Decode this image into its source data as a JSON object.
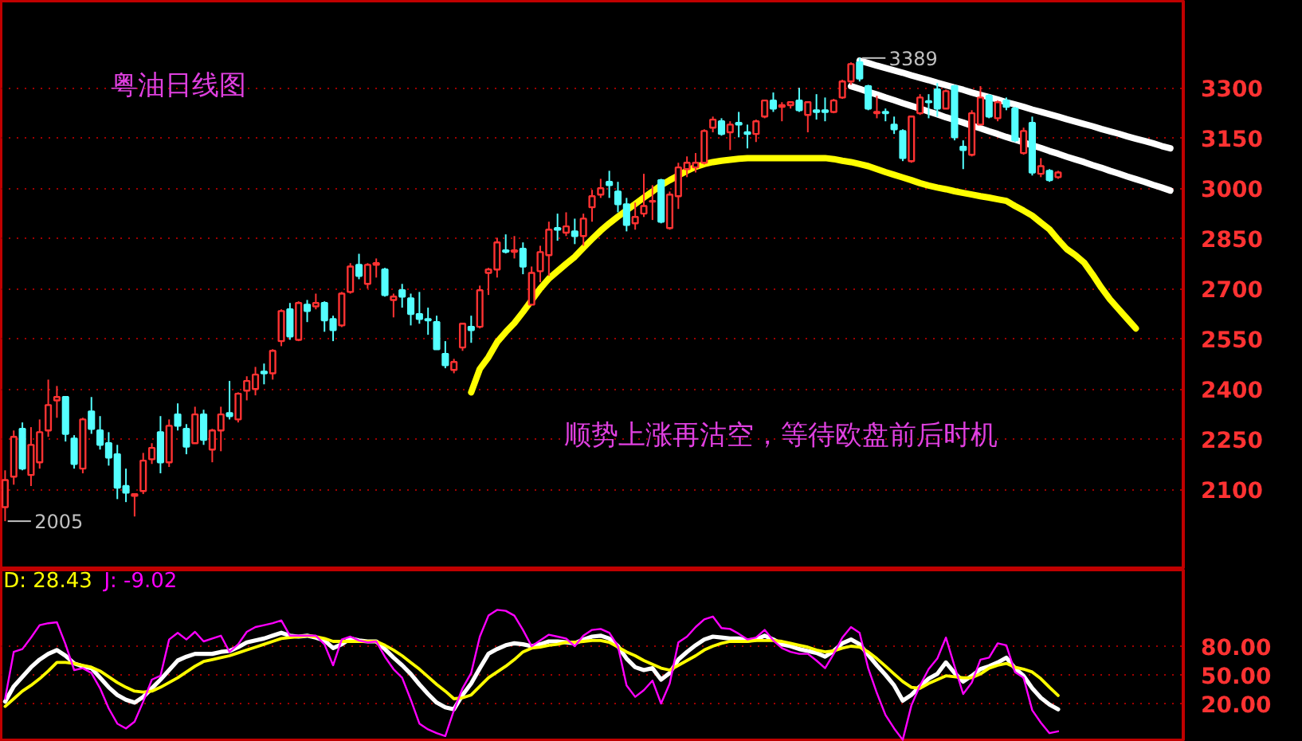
{
  "chart_data": [
    {
      "type": "candlestick",
      "title": "粤油日线图",
      "categories": [
        null,
        null,
        null,
        null,
        null,
        null,
        null,
        null,
        null,
        null,
        null,
        null,
        null,
        null,
        null,
        null,
        null,
        null,
        null,
        null,
        null,
        null,
        null,
        null,
        null,
        null,
        null,
        null,
        null,
        null,
        null,
        null,
        null,
        null,
        null,
        null,
        null,
        null,
        null,
        null,
        null,
        null,
        null,
        null,
        null,
        null,
        null,
        null,
        null,
        null,
        null,
        null,
        null,
        null,
        null,
        null,
        null,
        null,
        null,
        null,
        null,
        null,
        null,
        null,
        null,
        null,
        null,
        null,
        null,
        null,
        null,
        null,
        null,
        null,
        null,
        null,
        null,
        null,
        null,
        null,
        null,
        null,
        null,
        null,
        null,
        null,
        null,
        null,
        null,
        null,
        null,
        null,
        null,
        null,
        null,
        null,
        null,
        null,
        null,
        null,
        null,
        null,
        null,
        null,
        null,
        null,
        null,
        null,
        null,
        null,
        null,
        null,
        null,
        null,
        null,
        null,
        null,
        null,
        null,
        null,
        null,
        null,
        null,
        null,
        null,
        null,
        null,
        null,
        null,
        null,
        null,
        null,
        null,
        null,
        null,
        null,
        null
      ],
      "ohlc": [
        [
          2047,
          2157,
          2005,
          2128
        ],
        [
          2138,
          2276,
          2114,
          2257
        ],
        [
          2281,
          2300,
          2157,
          2162
        ],
        [
          2143,
          2286,
          2110,
          2233
        ],
        [
          2181,
          2309,
          2162,
          2271
        ],
        [
          2276,
          2428,
          2257,
          2352
        ],
        [
          2366,
          2409,
          2314,
          2376
        ],
        [
          2376,
          2376,
          2243,
          2266
        ],
        [
          2252,
          2262,
          2162,
          2176
        ],
        [
          2162,
          2314,
          2148,
          2309
        ],
        [
          2333,
          2376,
          2266,
          2281
        ],
        [
          2276,
          2319,
          2219,
          2233
        ],
        [
          2238,
          2271,
          2171,
          2195
        ],
        [
          2205,
          2233,
          2071,
          2105
        ],
        [
          2110,
          2162,
          2062,
          2090
        ],
        [
          2081,
          2086,
          2019,
          2086
        ],
        [
          2095,
          2209,
          2086,
          2186
        ],
        [
          2190,
          2238,
          2176,
          2224
        ],
        [
          2271,
          2319,
          2148,
          2181
        ],
        [
          2181,
          2309,
          2167,
          2290
        ],
        [
          2324,
          2357,
          2276,
          2290
        ],
        [
          2281,
          2295,
          2205,
          2228
        ],
        [
          2238,
          2347,
          2238,
          2324
        ],
        [
          2324,
          2338,
          2233,
          2248
        ],
        [
          2219,
          2281,
          2181,
          2276
        ],
        [
          2276,
          2347,
          2214,
          2324
        ],
        [
          2328,
          2424,
          2309,
          2319
        ],
        [
          2309,
          2390,
          2300,
          2386
        ],
        [
          2395,
          2438,
          2366,
          2424
        ],
        [
          2400,
          2466,
          2381,
          2443
        ],
        [
          2452,
          2476,
          2414,
          2447
        ],
        [
          2447,
          2519,
          2428,
          2514
        ],
        [
          2543,
          2638,
          2528,
          2633
        ],
        [
          2638,
          2657,
          2547,
          2557
        ],
        [
          2547,
          2662,
          2543,
          2657
        ],
        [
          2652,
          2666,
          2600,
          2633
        ],
        [
          2647,
          2685,
          2638,
          2657
        ],
        [
          2657,
          2662,
          2571,
          2605
        ],
        [
          2609,
          2619,
          2543,
          2576
        ],
        [
          2590,
          2690,
          2585,
          2685
        ],
        [
          2690,
          2776,
          2685,
          2766
        ],
        [
          2771,
          2804,
          2728,
          2738
        ],
        [
          2714,
          2776,
          2700,
          2771
        ],
        [
          2771,
          2790,
          2733,
          2776
        ],
        [
          2757,
          2762,
          2676,
          2681
        ],
        [
          2666,
          2685,
          2614,
          2676
        ],
        [
          2695,
          2714,
          2643,
          2676
        ],
        [
          2671,
          2685,
          2590,
          2624
        ],
        [
          2624,
          2690,
          2595,
          2609
        ],
        [
          2609,
          2643,
          2562,
          2605
        ],
        [
          2600,
          2619,
          2519,
          2519
        ],
        [
          2505,
          2543,
          2462,
          2471
        ],
        [
          2457,
          2490,
          2447,
          2481
        ],
        [
          2524,
          2595,
          2514,
          2595
        ],
        [
          2586,
          2619,
          2538,
          2576
        ],
        [
          2586,
          2709,
          2581,
          2695
        ],
        [
          2747,
          2762,
          2681,
          2757
        ],
        [
          2757,
          2852,
          2733,
          2838
        ],
        [
          2814,
          2862,
          2805,
          2810
        ],
        [
          2810,
          2857,
          2790,
          2814
        ],
        [
          2819,
          2838,
          2743,
          2766
        ],
        [
          2652,
          2766,
          2652,
          2747
        ],
        [
          2752,
          2828,
          2719,
          2809
        ],
        [
          2800,
          2900,
          2738,
          2876
        ],
        [
          2881,
          2924,
          2843,
          2876
        ],
        [
          2867,
          2928,
          2857,
          2886
        ],
        [
          2871,
          2909,
          2833,
          2857
        ],
        [
          2857,
          2924,
          2828,
          2909
        ],
        [
          2943,
          2995,
          2900,
          2976
        ],
        [
          2981,
          3028,
          2971,
          3000
        ],
        [
          3019,
          3052,
          2971,
          3009
        ],
        [
          2990,
          3019,
          2928,
          2952
        ],
        [
          2952,
          2971,
          2871,
          2890
        ],
        [
          2895,
          2957,
          2876,
          2914
        ],
        [
          2924,
          3043,
          2914,
          2947
        ],
        [
          2960,
          3009,
          2905,
          2962
        ],
        [
          3024,
          3028,
          2895,
          2900
        ],
        [
          2881,
          2990,
          2876,
          2981
        ],
        [
          2976,
          3076,
          2938,
          3062
        ],
        [
          3057,
          3095,
          3033,
          3076
        ],
        [
          3062,
          3105,
          3047,
          3076
        ],
        [
          3076,
          3176,
          3071,
          3171
        ],
        [
          3181,
          3214,
          3167,
          3205
        ],
        [
          3200,
          3209,
          3157,
          3162
        ],
        [
          3167,
          3200,
          3114,
          3190
        ],
        [
          3195,
          3228,
          3152,
          3190
        ],
        [
          3167,
          3190,
          3119,
          3162
        ],
        [
          3162,
          3205,
          3138,
          3200
        ],
        [
          3214,
          3262,
          3209,
          3262
        ],
        [
          3262,
          3286,
          3228,
          3238
        ],
        [
          3243,
          3257,
          3200,
          3248
        ],
        [
          3248,
          3257,
          3238,
          3257
        ],
        [
          3262,
          3300,
          3228,
          3233
        ],
        [
          3219,
          3257,
          3167,
          3257
        ],
        [
          3233,
          3281,
          3205,
          3228
        ],
        [
          3233,
          3271,
          3200,
          3228
        ],
        [
          3228,
          3267,
          3224,
          3262
        ],
        [
          3271,
          3324,
          3267,
          3319
        ],
        [
          3319,
          3376,
          3309,
          3371
        ],
        [
          3376,
          3389,
          3319,
          3328
        ],
        [
          3305,
          3309,
          3233,
          3238
        ],
        [
          3224,
          3276,
          3209,
          3228
        ],
        [
          3228,
          3238,
          3200,
          3224
        ],
        [
          3190,
          3214,
          3162,
          3176
        ],
        [
          3171,
          3176,
          3081,
          3090
        ],
        [
          3081,
          3214,
          3076,
          3214
        ],
        [
          3224,
          3281,
          3219,
          3271
        ],
        [
          3260,
          3281,
          3209,
          3257
        ],
        [
          3295,
          3314,
          3214,
          3238
        ],
        [
          3238,
          3295,
          3238,
          3290
        ],
        [
          3305,
          3309,
          3143,
          3152
        ],
        [
          3124,
          3143,
          3057,
          3114
        ],
        [
          3100,
          3233,
          3095,
          3224
        ],
        [
          3190,
          3305,
          3190,
          3271
        ],
        [
          3276,
          3281,
          3209,
          3214
        ],
        [
          3209,
          3262,
          3200,
          3257
        ],
        [
          3262,
          3271,
          3233,
          3243
        ],
        [
          3238,
          3243,
          3138,
          3143
        ],
        [
          3105,
          3181,
          3100,
          3171
        ],
        [
          3195,
          3214,
          3038,
          3047
        ],
        [
          3043,
          3090,
          3033,
          3066
        ],
        [
          3052,
          3057,
          3019,
          3024
        ],
        [
          3033,
          3052,
          3028,
          3047
        ],
        null,
        null,
        null,
        null,
        null,
        null,
        null,
        null,
        null,
        null,
        null,
        null,
        null,
        null
      ],
      "colors": [
        "#ff3232",
        "#ff3232",
        "#54ffff",
        "#ff3232",
        "#ff3232",
        "#ff3232",
        "#ff3232",
        "#54ffff",
        "#54ffff",
        "#ff3232",
        "#54ffff",
        "#54ffff",
        "#54ffff",
        "#54ffff",
        "#54ffff",
        "#ff3232",
        "#ff3232",
        "#ff3232",
        "#54ffff",
        "#ff3232",
        "#54ffff",
        "#54ffff",
        "#ff3232",
        "#54ffff",
        "#ff3232",
        "#ff3232",
        "#54ffff",
        "#ff3232",
        "#ff3232",
        "#ff3232",
        "#54ffff",
        "#ff3232",
        "#ff3232",
        "#54ffff",
        "#ff3232",
        "#54ffff",
        "#ff3232",
        "#54ffff",
        "#54ffff",
        "#ff3232",
        "#ff3232",
        "#54ffff",
        "#ff3232",
        "#ff3232",
        "#54ffff",
        "#ff3232",
        "#54ffff",
        "#54ffff",
        "#54ffff",
        "#54ffff",
        "#54ffff",
        "#54ffff",
        "#ff3232",
        "#ff3232",
        "#54ffff",
        "#ff3232",
        "#ff3232",
        "#ff3232",
        "#54ffff",
        "#ff3232",
        "#54ffff",
        "#ff3232",
        "#ff3232",
        "#ff3232",
        "#54ffff",
        "#ff3232",
        "#54ffff",
        "#ff3232",
        "#ff3232",
        "#ff3232",
        "#54ffff",
        "#54ffff",
        "#54ffff",
        "#ff3232",
        "#ff3232",
        "#ff3232",
        "#54ffff",
        "#ff3232",
        "#ff3232",
        "#ff3232",
        "#ff3232",
        "#ff3232",
        "#ff3232",
        "#54ffff",
        "#ff3232",
        "#54ffff",
        "#54ffff",
        "#ff3232",
        "#ff3232",
        "#54ffff",
        "#ff3232",
        "#ff3232",
        "#54ffff",
        "#ff3232",
        "#54ffff",
        "#54ffff",
        "#ff3232",
        "#ff3232",
        "#ff3232",
        "#54ffff",
        "#54ffff",
        "#ff3232",
        "#54ffff",
        "#54ffff",
        "#54ffff",
        "#ff3232",
        "#ff3232",
        "#54ffff",
        "#54ffff",
        "#ff3232",
        "#54ffff",
        "#54ffff",
        "#ff3232",
        "#ff3232",
        "#54ffff",
        "#ff3232",
        "#54ffff",
        "#54ffff",
        "#ff3232",
        "#54ffff",
        "#ff3232",
        "#54ffff",
        "#ff3232",
        null,
        null,
        null,
        null,
        null,
        null,
        null,
        null,
        null,
        null,
        null,
        null,
        null,
        null
      ],
      "series": [
        {
          "type": "line",
          "color": "#ffff00",
          "values": [
            null,
            null,
            null,
            null,
            null,
            null,
            null,
            null,
            null,
            null,
            null,
            null,
            null,
            null,
            null,
            null,
            null,
            null,
            null,
            null,
            null,
            null,
            null,
            null,
            null,
            null,
            null,
            null,
            null,
            null,
            null,
            null,
            null,
            null,
            null,
            null,
            null,
            null,
            null,
            null,
            null,
            null,
            null,
            null,
            null,
            null,
            null,
            null,
            null,
            null,
            null,
            null,
            null,
            null,
            2390,
            2460,
            2495,
            2540,
            2570,
            2597,
            2630,
            2665,
            2700,
            2730,
            2752,
            2774,
            2795,
            2822,
            2848,
            2873,
            2895,
            2915,
            2934,
            2953,
            2972,
            2990,
            3009,
            3024,
            3038,
            3052,
            3064,
            3072,
            3078,
            3082,
            3085,
            3088,
            3090,
            3090,
            3090,
            3090,
            3090,
            3090,
            3090,
            3090,
            3090,
            3090,
            3087,
            3082,
            3078,
            3072,
            3066,
            3057,
            3048,
            3040,
            3032,
            3024,
            3015,
            3008,
            3002,
            2997,
            2991,
            2986,
            2981,
            2976,
            2972,
            2967,
            2962,
            2947,
            2933,
            2918,
            2897,
            2877,
            2846,
            2818,
            2800,
            2778,
            2742,
            2703,
            2668,
            2639,
            2610,
            2581,
            null,
            null,
            null,
            null,
            null
          ]
        },
        {
          "type": "line",
          "color": "#ffffff",
          "values": [
            null,
            null,
            null,
            null,
            null,
            null,
            null,
            null,
            null,
            null,
            null,
            null,
            null,
            null,
            null,
            null,
            null,
            null,
            null,
            null,
            null,
            null,
            null,
            null,
            null,
            null,
            null,
            null,
            null,
            null,
            null,
            null,
            null,
            null,
            null,
            null,
            null,
            null,
            null,
            null,
            null,
            null,
            null,
            null,
            null,
            null,
            null,
            null,
            null,
            null,
            null,
            null,
            null,
            null,
            null,
            null,
            null,
            null,
            null,
            null,
            null,
            null,
            null,
            null,
            null,
            null,
            null,
            null,
            null,
            null,
            null,
            null,
            null,
            null,
            null,
            null,
            null,
            null,
            null,
            null,
            null,
            null,
            null,
            null,
            null,
            null,
            null,
            null,
            null,
            null,
            null,
            null,
            null,
            null,
            null,
            null,
            null,
            null,
            null,
            3381,
            3374,
            3366,
            3359,
            3352,
            3345,
            3337,
            3330,
            3323,
            3315,
            3308,
            3301,
            3294,
            3286,
            3279,
            3272,
            3265,
            3257,
            3250,
            3243,
            3235,
            3228,
            3221,
            3214,
            3206,
            3199,
            3192,
            3185,
            3177,
            3170,
            3163,
            3155,
            3148,
            3141,
            3134,
            3126,
            3119,
            null
          ]
        },
        {
          "type": "line",
          "color": "#ffffff",
          "values": [
            null,
            null,
            null,
            null,
            null,
            null,
            null,
            null,
            null,
            null,
            null,
            null,
            null,
            null,
            null,
            null,
            null,
            null,
            null,
            null,
            null,
            null,
            null,
            null,
            null,
            null,
            null,
            null,
            null,
            null,
            null,
            null,
            null,
            null,
            null,
            null,
            null,
            null,
            null,
            null,
            null,
            null,
            null,
            null,
            null,
            null,
            null,
            null,
            null,
            null,
            null,
            null,
            null,
            null,
            null,
            null,
            null,
            null,
            null,
            null,
            null,
            null,
            null,
            null,
            null,
            null,
            null,
            null,
            null,
            null,
            null,
            null,
            null,
            null,
            null,
            null,
            null,
            null,
            null,
            null,
            null,
            null,
            null,
            null,
            null,
            null,
            null,
            null,
            null,
            null,
            null,
            null,
            null,
            null,
            null,
            null,
            null,
            null,
            3305,
            3297,
            3288,
            3280,
            3271,
            3263,
            3254,
            3246,
            3238,
            3229,
            3221,
            3212,
            3204,
            3196,
            3187,
            3179,
            3170,
            3162,
            3153,
            3145,
            3137,
            3128,
            3120,
            3111,
            3103,
            3094,
            3086,
            3078,
            3069,
            3061,
            3052,
            3044,
            3035,
            3027,
            3019,
            3010,
            3002,
            2993,
            null
          ]
        }
      ],
      "ylim": [
        1860,
        3560
      ],
      "yticks": [
        2100,
        2250,
        2400,
        2550,
        2700,
        2850,
        3000,
        3150,
        3300
      ],
      "grid": "y",
      "tick_labels": "y",
      "annotations": [
        "顺势上涨再沽空，等待欧盘前后时机",
        "3389",
        "2005"
      ]
    },
    {
      "type": "line",
      "categories": [
        null,
        null,
        null,
        null,
        null,
        null,
        null,
        null,
        null,
        null,
        null,
        null,
        null,
        null,
        null,
        null,
        null,
        null,
        null,
        null,
        null,
        null,
        null,
        null,
        null,
        null,
        null,
        null,
        null,
        null,
        null,
        null,
        null,
        null,
        null,
        null,
        null,
        null,
        null,
        null,
        null,
        null,
        null,
        null,
        null,
        null,
        null,
        null,
        null,
        null,
        null,
        null,
        null,
        null,
        null,
        null,
        null,
        null,
        null,
        null,
        null,
        null,
        null,
        null,
        null,
        null,
        null,
        null,
        null,
        null,
        null,
        null,
        null,
        null,
        null,
        null,
        null,
        null,
        null,
        null,
        null,
        null,
        null,
        null,
        null,
        null,
        null,
        null,
        null,
        null,
        null,
        null,
        null,
        null,
        null,
        null,
        null,
        null,
        null,
        null,
        null,
        null,
        null,
        null,
        null,
        null,
        null,
        null,
        null,
        null,
        null,
        null,
        null,
        null,
        null,
        null,
        null,
        null,
        null,
        null,
        null,
        null,
        null,
        null,
        null,
        null,
        null,
        null,
        null,
        null,
        null,
        null,
        null,
        null,
        null,
        null,
        null
      ],
      "series": [
        {
          "color": "#ffffff",
          "values": [
            22,
            38,
            48,
            58,
            66,
            72,
            76,
            70,
            62,
            59,
            57,
            47,
            37,
            29,
            24,
            21,
            27,
            36,
            45,
            55,
            65,
            69,
            72,
            72,
            72,
            74,
            75,
            79,
            84,
            86,
            88,
            91,
            94,
            91,
            90,
            91,
            89,
            86,
            78,
            82,
            88,
            86,
            85,
            85,
            77,
            68,
            60,
            51,
            40,
            30,
            21,
            16,
            14,
            29,
            41,
            57,
            72,
            77,
            81,
            83,
            82,
            80,
            82,
            85,
            85,
            84,
            83,
            87,
            90,
            91,
            88,
            80,
            67,
            58,
            55,
            57,
            45,
            52,
            66,
            74,
            81,
            87,
            90,
            89,
            88,
            88,
            86,
            87,
            91,
            87,
            82,
            80,
            77,
            75,
            73,
            69,
            75,
            83,
            87,
            82,
            71,
            60,
            50,
            39,
            23,
            29,
            38,
            46,
            51,
            63,
            52,
            43,
            49,
            56,
            59,
            63,
            68,
            57,
            49,
            36,
            26,
            19,
            14,
            null,
            null,
            null,
            null,
            null,
            null,
            null,
            null,
            null,
            null,
            null,
            null,
            null,
            null
          ]
        },
        {
          "color": "#ffff00",
          "values": [
            17,
            25,
            33,
            39,
            46,
            54,
            63,
            63,
            62,
            60,
            58,
            54,
            48,
            42,
            37,
            33,
            32,
            33,
            37,
            42,
            47,
            53,
            59,
            64,
            66,
            68,
            70,
            73,
            76,
            79,
            82,
            85,
            88,
            89,
            90,
            91,
            90,
            88,
            85,
            85,
            85,
            85,
            85,
            85,
            81,
            76,
            70,
            63,
            56,
            48,
            40,
            33,
            25,
            26,
            29,
            38,
            47,
            53,
            59,
            66,
            74,
            78,
            79,
            81,
            82,
            84,
            84,
            85,
            86,
            86,
            84,
            79,
            74,
            70,
            65,
            61,
            57,
            55,
            60,
            65,
            70,
            76,
            80,
            83,
            85,
            85,
            85,
            86,
            86,
            86,
            85,
            83,
            81,
            79,
            76,
            74,
            75,
            78,
            80,
            79,
            74,
            67,
            59,
            51,
            43,
            37,
            36,
            41,
            45,
            49,
            48,
            47,
            47,
            51,
            57,
            60,
            62,
            58,
            56,
            53,
            46,
            37,
            28.43,
            null,
            null,
            null,
            null,
            null,
            null,
            null,
            null,
            null,
            null,
            null,
            null,
            null,
            null
          ]
        },
        {
          "color": "#ff00ff",
          "values": [
            25,
            74,
            77,
            89,
            102,
            104,
            105,
            82,
            55,
            57,
            52,
            36,
            15,
            -1,
            -6,
            1,
            22,
            45,
            49,
            87,
            94,
            87,
            95,
            85,
            88,
            91,
            74,
            82,
            95,
            100,
            102,
            104,
            107,
            91,
            91,
            91,
            91,
            82,
            60,
            87,
            90,
            86,
            84,
            85,
            69,
            56,
            47,
            24,
            -1,
            -7,
            -11,
            -14,
            13,
            36,
            52,
            90,
            112,
            118,
            117,
            112,
            97,
            80,
            86,
            92,
            90,
            88,
            80,
            91,
            97,
            98,
            94,
            80,
            39,
            27,
            34,
            44,
            20,
            41,
            84,
            90,
            100,
            108,
            111,
            99,
            98,
            93,
            87,
            89,
            97,
            86,
            78,
            74,
            72,
            72,
            65,
            57,
            72,
            89,
            100,
            94,
            57,
            31,
            8,
            -6,
            -18,
            18,
            39,
            56,
            67,
            89,
            59,
            30,
            42,
            66,
            68,
            83,
            81,
            53,
            47,
            13,
            0,
            -11,
            -9.02,
            null,
            null,
            null,
            null,
            null,
            null,
            null,
            null,
            null,
            null,
            null,
            null,
            null,
            null
          ]
        }
      ],
      "ylim": [
        -20,
        160
      ],
      "yticks": [
        {
          "value": 20,
          "label": "20.00"
        },
        {
          "value": 50,
          "label": "50.00"
        },
        {
          "value": 80,
          "label": "80.00"
        }
      ],
      "grid": "y",
      "tick_labels": "y",
      "annotations": [
        "D: 28.43",
        "J: -9.02"
      ]
    }
  ]
}
